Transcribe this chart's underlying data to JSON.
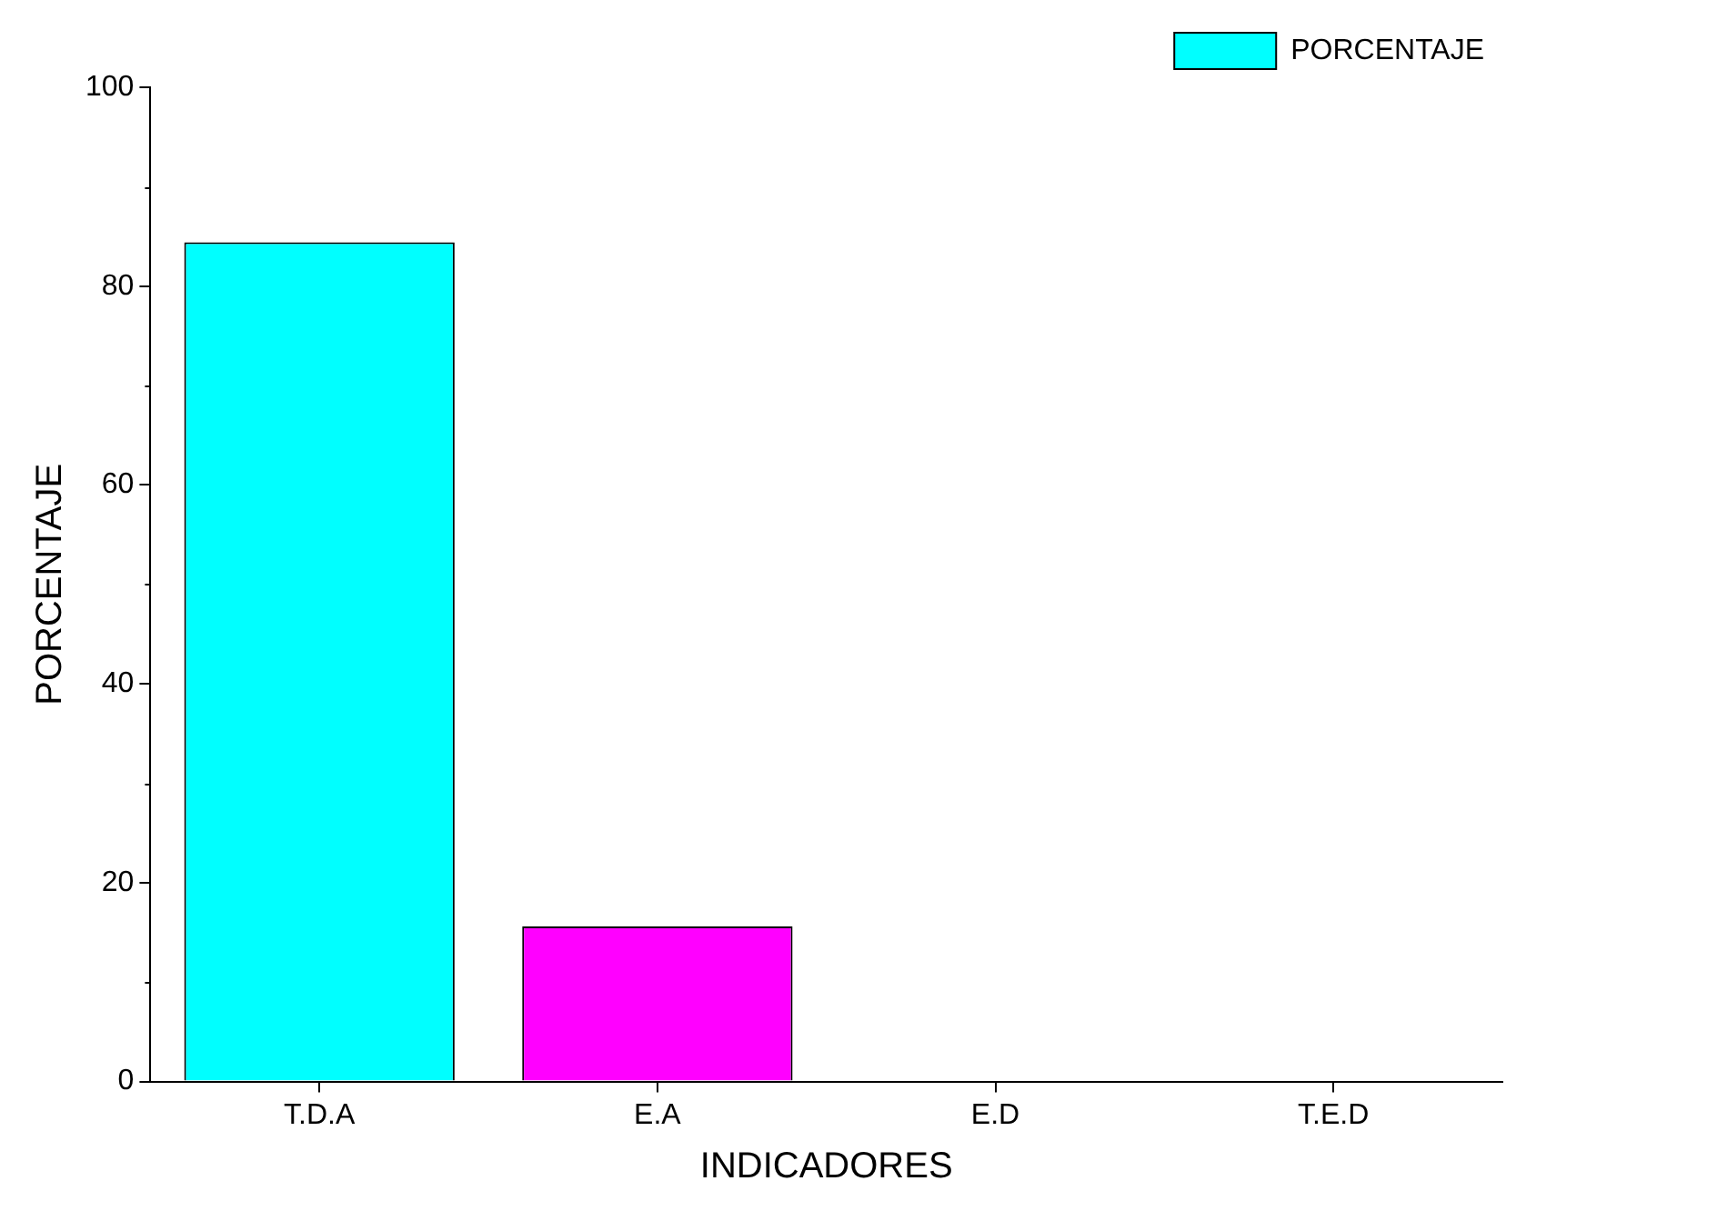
{
  "chart_data": {
    "type": "bar",
    "xlabel": "INDICADORES",
    "ylabel": "PORCENTAJE",
    "categories": [
      "T.D.A",
      "E.A",
      "E.D",
      "T.E.D"
    ],
    "series": [
      {
        "name": "PORCENTAJE",
        "color": "#00ffff",
        "colors": [
          "#00ffff",
          "#ff00ff",
          "#00ffff",
          "#00ffff"
        ],
        "values": [
          84.4,
          15.6,
          0,
          0
        ]
      }
    ],
    "ylim": [
      0,
      100
    ],
    "yticks": [
      0,
      20,
      40,
      60,
      80,
      100
    ],
    "grid": false,
    "legend": "top right"
  }
}
